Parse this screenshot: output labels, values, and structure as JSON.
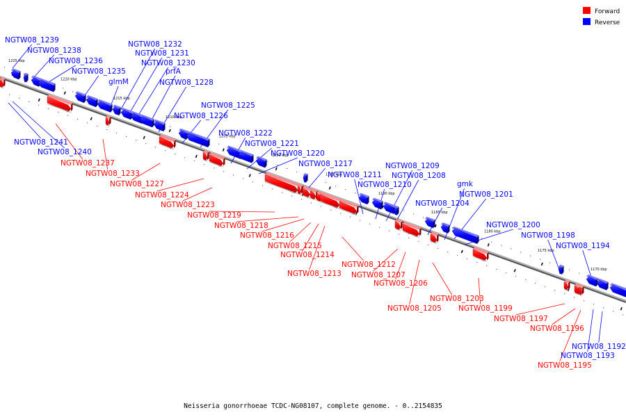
{
  "caption": "Neisseria gonorrhoeae TCDC-NG08107, complete genome. - 0..2154835",
  "legend": [
    {
      "label": "Forward",
      "color": "#ff0000"
    },
    {
      "label": "Reverse",
      "color": "#0000ff"
    }
  ],
  "colors": {
    "forward": "#ff0000",
    "reverse": "#0000ff",
    "backbone": "#808080"
  },
  "scale_labels": [
    "1225 kbp",
    "1220 kbp",
    "1215 kbp",
    "1210 kbp",
    "1205 kbp",
    "1200 kbp",
    "1195 kbp",
    "1190 kbp",
    "1185 kbp",
    "1180 kbp",
    "1175 kbp",
    "1170 kbp"
  ],
  "genes": [
    {
      "name": "NGTW08_1239",
      "strand": "reverse"
    },
    {
      "name": "NGTW08_1238",
      "strand": "reverse"
    },
    {
      "name": "NGTW08_1236",
      "strand": "reverse"
    },
    {
      "name": "NGTW08_1235",
      "strand": "reverse"
    },
    {
      "name": "NGTW08_1232",
      "strand": "reverse"
    },
    {
      "name": "NGTW08_1231",
      "strand": "reverse"
    },
    {
      "name": "NGTW08_1230",
      "strand": "reverse"
    },
    {
      "name": "glmM",
      "strand": "reverse"
    },
    {
      "name": "prfA",
      "strand": "reverse"
    },
    {
      "name": "NGTW08_1228",
      "strand": "reverse"
    },
    {
      "name": "NGTW08_1226",
      "strand": "reverse"
    },
    {
      "name": "NGTW08_1225",
      "strand": "reverse"
    },
    {
      "name": "NGTW08_1222",
      "strand": "reverse"
    },
    {
      "name": "NGTW08_1221",
      "strand": "reverse"
    },
    {
      "name": "NGTW08_1220",
      "strand": "reverse"
    },
    {
      "name": "NGTW08_1217",
      "strand": "reverse"
    },
    {
      "name": "NGTW08_1211",
      "strand": "reverse"
    },
    {
      "name": "NGTW08_1210",
      "strand": "reverse"
    },
    {
      "name": "NGTW08_1209",
      "strand": "reverse"
    },
    {
      "name": "NGTW08_1208",
      "strand": "reverse"
    },
    {
      "name": "NGTW08_1204",
      "strand": "reverse"
    },
    {
      "name": "gmk",
      "strand": "reverse"
    },
    {
      "name": "NGTW08_1201",
      "strand": "reverse"
    },
    {
      "name": "NGTW08_1200",
      "strand": "reverse"
    },
    {
      "name": "NGTW08_1198",
      "strand": "reverse"
    },
    {
      "name": "NGTW08_1194",
      "strand": "reverse"
    },
    {
      "name": "NGTW08_1192",
      "strand": "reverse"
    },
    {
      "name": "NGTW08_1193",
      "strand": "reverse"
    },
    {
      "name": "NGTW08_1241",
      "strand": "reverse"
    },
    {
      "name": "NGTW08_1240",
      "strand": "reverse"
    },
    {
      "name": "NGTW08_1237",
      "strand": "forward"
    },
    {
      "name": "NGTW08_1233",
      "strand": "forward"
    },
    {
      "name": "NGTW08_1227",
      "strand": "forward"
    },
    {
      "name": "NGTW08_1224",
      "strand": "forward"
    },
    {
      "name": "NGTW08_1223",
      "strand": "forward"
    },
    {
      "name": "NGTW08_1219",
      "strand": "forward"
    },
    {
      "name": "NGTW08_1218",
      "strand": "forward"
    },
    {
      "name": "NGTW08_1216",
      "strand": "forward"
    },
    {
      "name": "NGTW08_1215",
      "strand": "forward"
    },
    {
      "name": "NGTW08_1214",
      "strand": "forward"
    },
    {
      "name": "NGTW08_1213",
      "strand": "forward"
    },
    {
      "name": "NGTW08_1212",
      "strand": "forward"
    },
    {
      "name": "NGTW08_1207",
      "strand": "forward"
    },
    {
      "name": "NGTW08_1206",
      "strand": "forward"
    },
    {
      "name": "NGTW08_1205",
      "strand": "forward"
    },
    {
      "name": "NGTW08_1203",
      "strand": "forward"
    },
    {
      "name": "NGTW08_1199",
      "strand": "forward"
    },
    {
      "name": "NGTW08_1197",
      "strand": "forward"
    },
    {
      "name": "NGTW08_1196",
      "strand": "forward"
    },
    {
      "name": "NGTW08_1195",
      "strand": "forward"
    }
  ]
}
